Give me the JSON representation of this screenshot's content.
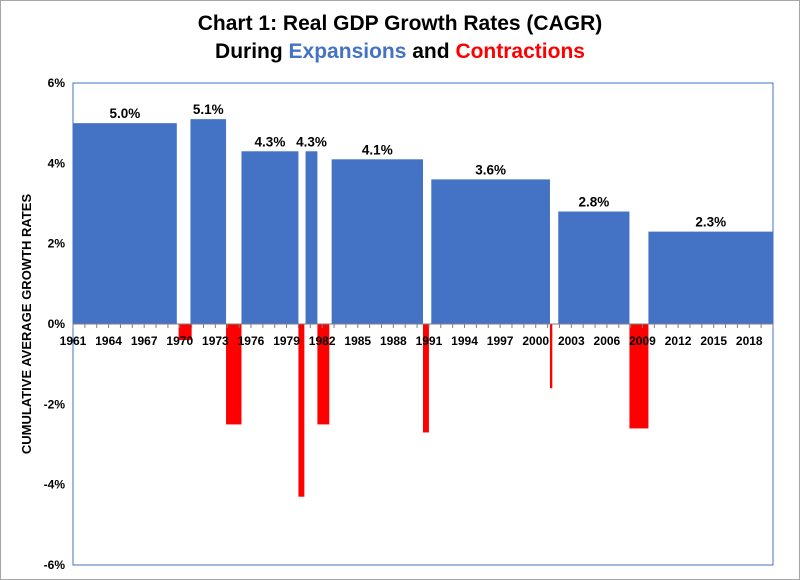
{
  "chart_data": {
    "type": "bar",
    "title_line1": "Chart 1: Real GDP Growth Rates (CAGR)",
    "title_line2_prefix": "During ",
    "title_expansions_word": "Expansions",
    "title_and_word": " and ",
    "title_contractions_word": "Contractions",
    "ylabel": "CUMULATIVE AVERAGE GROWTH RATES",
    "xlabel": "",
    "ylim": [
      -6,
      6
    ],
    "yticks": [
      "6%",
      "4%",
      "2%",
      "0%",
      "-2%",
      "-4%",
      "-6%"
    ],
    "yvalues": [
      6,
      4,
      2,
      0,
      -2,
      -4,
      -6
    ],
    "xlim": [
      1961,
      2020
    ],
    "xticks": [
      1961,
      1964,
      1967,
      1970,
      1973,
      1976,
      1979,
      1982,
      1985,
      1988,
      1991,
      1994,
      1997,
      2000,
      2003,
      2006,
      2009,
      2012,
      2015,
      2018
    ],
    "series": [
      {
        "name": "Expansions",
        "color": "#4472c4",
        "bars": [
          {
            "start": 1961.0,
            "end": 1969.75,
            "value": 5.0,
            "label": "5.0%"
          },
          {
            "start": 1970.9,
            "end": 1973.9,
            "value": 5.1,
            "label": "5.1%"
          },
          {
            "start": 1975.2,
            "end": 1980.0,
            "value": 4.3,
            "label": "4.3%"
          },
          {
            "start": 1980.6,
            "end": 1981.6,
            "value": 4.3,
            "label": "4.3%"
          },
          {
            "start": 1982.8,
            "end": 1990.5,
            "value": 4.1,
            "label": "4.1%"
          },
          {
            "start": 1991.2,
            "end": 2001.2,
            "value": 3.6,
            "label": "3.6%"
          },
          {
            "start": 2001.9,
            "end": 2007.9,
            "value": 2.8,
            "label": "2.8%"
          },
          {
            "start": 2009.5,
            "end": 2020.0,
            "value": 2.3,
            "label": "2.3%"
          }
        ]
      },
      {
        "name": "Contractions",
        "color": "#ff0000",
        "bars": [
          {
            "start": 1969.9,
            "end": 1971.0,
            "value": -0.4
          },
          {
            "start": 1973.9,
            "end": 1975.2,
            "value": -2.5
          },
          {
            "start": 1980.0,
            "end": 1980.5,
            "value": -4.3
          },
          {
            "start": 1981.6,
            "end": 1982.6,
            "value": -2.5
          },
          {
            "start": 1990.5,
            "end": 1991.0,
            "value": -2.7
          },
          {
            "start": 2001.2,
            "end": 2001.4,
            "value": -1.6
          },
          {
            "start": 2007.9,
            "end": 2009.5,
            "value": -2.6
          }
        ]
      }
    ],
    "grid": true,
    "legend": "none"
  }
}
